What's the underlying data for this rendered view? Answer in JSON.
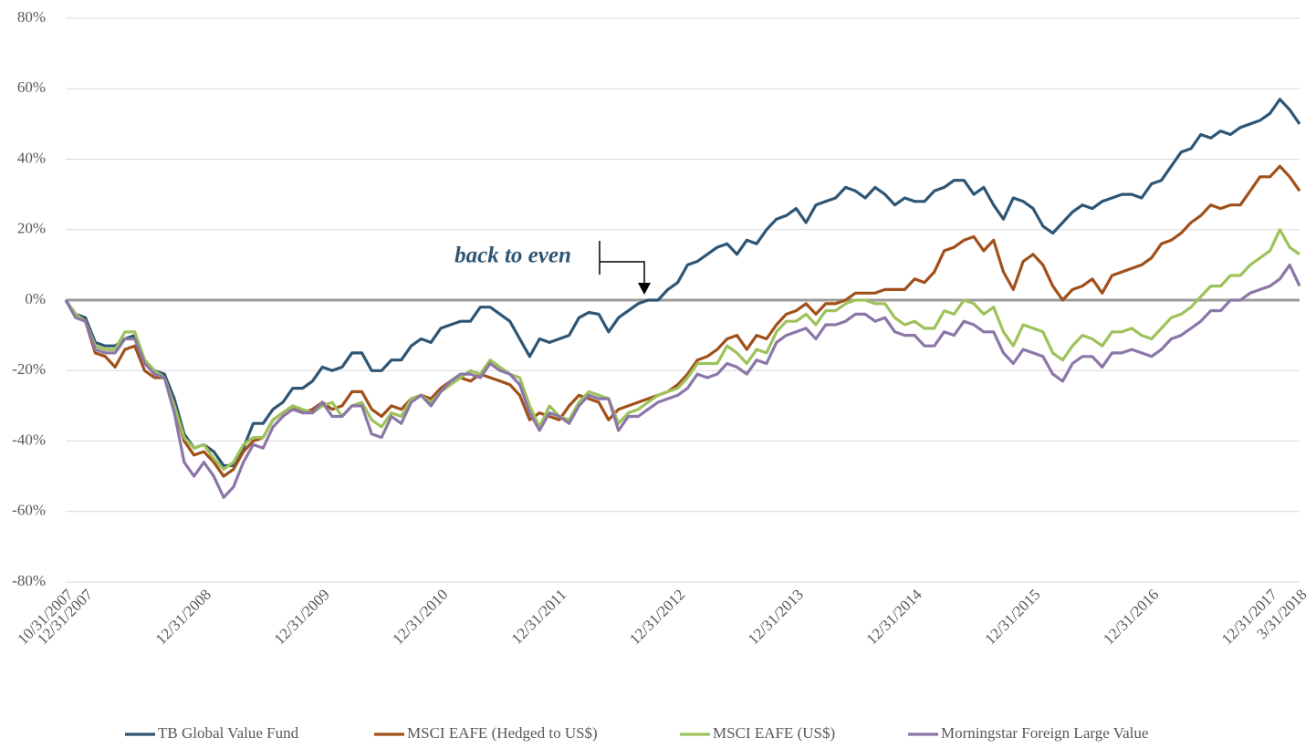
{
  "chart_data": {
    "type": "line",
    "annotation": "back to even",
    "ylim": [
      -80,
      80
    ],
    "yticks": [
      {
        "value": -80,
        "label": "-80%"
      },
      {
        "value": -60,
        "label": "-60%"
      },
      {
        "value": -40,
        "label": "-40%"
      },
      {
        "value": -20,
        "label": "-20%"
      },
      {
        "value": 0,
        "label": "0%"
      },
      {
        "value": 20,
        "label": "20%"
      },
      {
        "value": 40,
        "label": "40%"
      },
      {
        "value": 60,
        "label": "60%"
      },
      {
        "value": 80,
        "label": "80%"
      }
    ],
    "grid": true,
    "legend": "bottom",
    "categories": [
      "10/31/2007",
      null,
      "12/31/2007",
      null,
      null,
      null,
      null,
      null,
      null,
      null,
      null,
      null,
      null,
      null,
      "12/31/2008",
      null,
      null,
      null,
      null,
      null,
      null,
      null,
      null,
      null,
      null,
      null,
      "12/31/2009",
      null,
      null,
      null,
      null,
      null,
      null,
      null,
      null,
      null,
      null,
      null,
      "12/31/2010",
      null,
      null,
      null,
      null,
      null,
      null,
      null,
      null,
      null,
      null,
      null,
      "12/31/2011",
      null,
      null,
      null,
      null,
      null,
      null,
      null,
      null,
      null,
      null,
      null,
      "12/31/2012",
      null,
      null,
      null,
      null,
      null,
      null,
      null,
      null,
      null,
      null,
      null,
      "12/31/2013",
      null,
      null,
      null,
      null,
      null,
      null,
      null,
      null,
      null,
      null,
      null,
      "12/31/2014",
      null,
      null,
      null,
      null,
      null,
      null,
      null,
      null,
      null,
      null,
      null,
      "12/31/2015",
      null,
      null,
      null,
      null,
      null,
      null,
      null,
      null,
      null,
      null,
      null,
      "12/31/2016",
      null,
      null,
      null,
      null,
      null,
      null,
      null,
      null,
      null,
      null,
      null,
      "12/31/2017",
      null,
      null,
      "3/31/2018"
    ],
    "series": [
      {
        "name": "TB Global Value Fund",
        "color": "#2e5573",
        "values": [
          0,
          -4,
          -5,
          -12,
          -13,
          -13,
          -11,
          -10,
          -17,
          -20,
          -21,
          -28,
          -38,
          -42,
          -41,
          -43,
          -47,
          -47,
          -42,
          -35,
          -35,
          -31,
          -29,
          -25,
          -25,
          -23,
          -19,
          -20,
          -19,
          -15,
          -15,
          -20,
          -20,
          -17,
          -17,
          -13,
          -11,
          -12,
          -8,
          -7,
          -6,
          -6,
          -2,
          -2,
          -4,
          -6,
          -11,
          -16,
          -11,
          -12,
          -11,
          -10,
          -5,
          -3.5,
          -4,
          -9,
          -5,
          -3,
          -1,
          0,
          0,
          3,
          5,
          10,
          11,
          13,
          15,
          16,
          13,
          17,
          16,
          20,
          23,
          24,
          26,
          22,
          27,
          28,
          29,
          32,
          31,
          29,
          32,
          30,
          27,
          29,
          28,
          28,
          31,
          32,
          34,
          34,
          30,
          32,
          27,
          23,
          29,
          28,
          26,
          21,
          19,
          22,
          25,
          27,
          26,
          28,
          29,
          30,
          30,
          29,
          33,
          34,
          38,
          42,
          43,
          47,
          46,
          48,
          47,
          49,
          50,
          51,
          53,
          57,
          54,
          50
        ]
      },
      {
        "name": "MSCI EAFE (Hedged to US$)",
        "color": "#a0501a",
        "values": [
          0,
          -4,
          -6,
          -15,
          -16,
          -19,
          -14,
          -13,
          -20,
          -22,
          -22,
          -30,
          -40,
          -44,
          -43,
          -46,
          -50,
          -48,
          -43,
          -40,
          -39,
          -34,
          -32,
          -30,
          -32,
          -31,
          -29,
          -31,
          -30,
          -26,
          -26,
          -31,
          -33,
          -30,
          -31,
          -28,
          -27,
          -28,
          -25,
          -23,
          -22,
          -23,
          -21,
          -22,
          -23,
          -24,
          -27,
          -34,
          -32,
          -33,
          -34,
          -30,
          -27,
          -28,
          -29,
          -34,
          -31,
          -30,
          -29,
          -28,
          -27,
          -26,
          -24,
          -21,
          -17,
          -16,
          -14,
          -11,
          -10,
          -14,
          -10,
          -11,
          -7,
          -4,
          -3,
          -1,
          -4,
          -1,
          -1,
          0,
          2,
          2,
          2,
          3,
          3,
          3,
          6,
          5,
          8,
          14,
          15,
          17,
          18,
          14,
          17,
          8,
          3,
          11,
          13,
          10,
          4,
          0,
          3,
          4,
          6,
          2,
          7,
          8,
          9,
          10,
          12,
          16,
          17,
          19,
          22,
          24,
          27,
          26,
          27,
          27,
          31,
          35,
          35,
          38,
          35,
          31
        ]
      },
      {
        "name": "MSCI EAFE (US$)",
        "color": "#9dc25a",
        "values": [
          0,
          -4,
          -6,
          -13,
          -14,
          -14,
          -9,
          -9,
          -17,
          -20,
          -22,
          -30,
          -39,
          -42,
          -41,
          -45,
          -48,
          -46,
          -41,
          -39,
          -39,
          -34,
          -32,
          -30,
          -31,
          -32,
          -30,
          -29,
          -33,
          -30,
          -29,
          -34,
          -36,
          -32,
          -33,
          -28,
          -27,
          -29,
          -26,
          -24,
          -22,
          -20,
          -21,
          -17,
          -19,
          -21,
          -22,
          -30,
          -36,
          -30,
          -33,
          -34,
          -29,
          -26,
          -27,
          -28,
          -35,
          -32,
          -31,
          -29,
          -27,
          -26,
          -25,
          -22,
          -18,
          -18,
          -18,
          -13,
          -15,
          -18,
          -14,
          -15,
          -9,
          -6,
          -6,
          -4,
          -7,
          -3,
          -3,
          -1,
          0,
          0,
          -1,
          -1,
          -5,
          -7,
          -6,
          -8,
          -8,
          -3,
          -4,
          0,
          -1,
          -4,
          -2,
          -9,
          -13,
          -7,
          -8,
          -9,
          -15,
          -17,
          -13,
          -10,
          -11,
          -13,
          -9,
          -9,
          -8,
          -10,
          -11,
          -8,
          -5,
          -4,
          -2,
          1,
          4,
          4,
          7,
          7,
          10,
          12,
          14,
          20,
          15,
          13
        ]
      },
      {
        "name": "Morningstar Foreign Large Value",
        "color": "#8b76a8",
        "values": [
          0,
          -5,
          -6,
          -14,
          -15,
          -15,
          -11,
          -11,
          -18,
          -21,
          -22,
          -32,
          -46,
          -50,
          -46,
          -50,
          -56,
          -53,
          -46,
          -41,
          -42,
          -36,
          -33,
          -31,
          -32,
          -32,
          -29,
          -33,
          -33,
          -30,
          -30,
          -38,
          -39,
          -33,
          -35,
          -29,
          -27,
          -30,
          -26,
          -23,
          -21,
          -21,
          -22,
          -18,
          -20,
          -21,
          -24,
          -32,
          -37,
          -32,
          -33,
          -35,
          -30,
          -27,
          -28,
          -28,
          -37,
          -33,
          -33,
          -31,
          -29,
          -28,
          -27,
          -25,
          -21,
          -22,
          -21,
          -18,
          -19,
          -21,
          -17,
          -18,
          -12,
          -10,
          -9,
          -8,
          -11,
          -7,
          -7,
          -6,
          -4,
          -4,
          -6,
          -5,
          -9,
          -10,
          -10,
          -13,
          -13,
          -9,
          -10,
          -6,
          -7,
          -9,
          -9,
          -15,
          -18,
          -14,
          -15,
          -16,
          -21,
          -23,
          -18,
          -16,
          -16,
          -19,
          -15,
          -15,
          -14,
          -15,
          -16,
          -14,
          -11,
          -10,
          -8,
          -6,
          -3,
          -3,
          0,
          0,
          2,
          3,
          4,
          6,
          10,
          4
        ]
      }
    ]
  }
}
